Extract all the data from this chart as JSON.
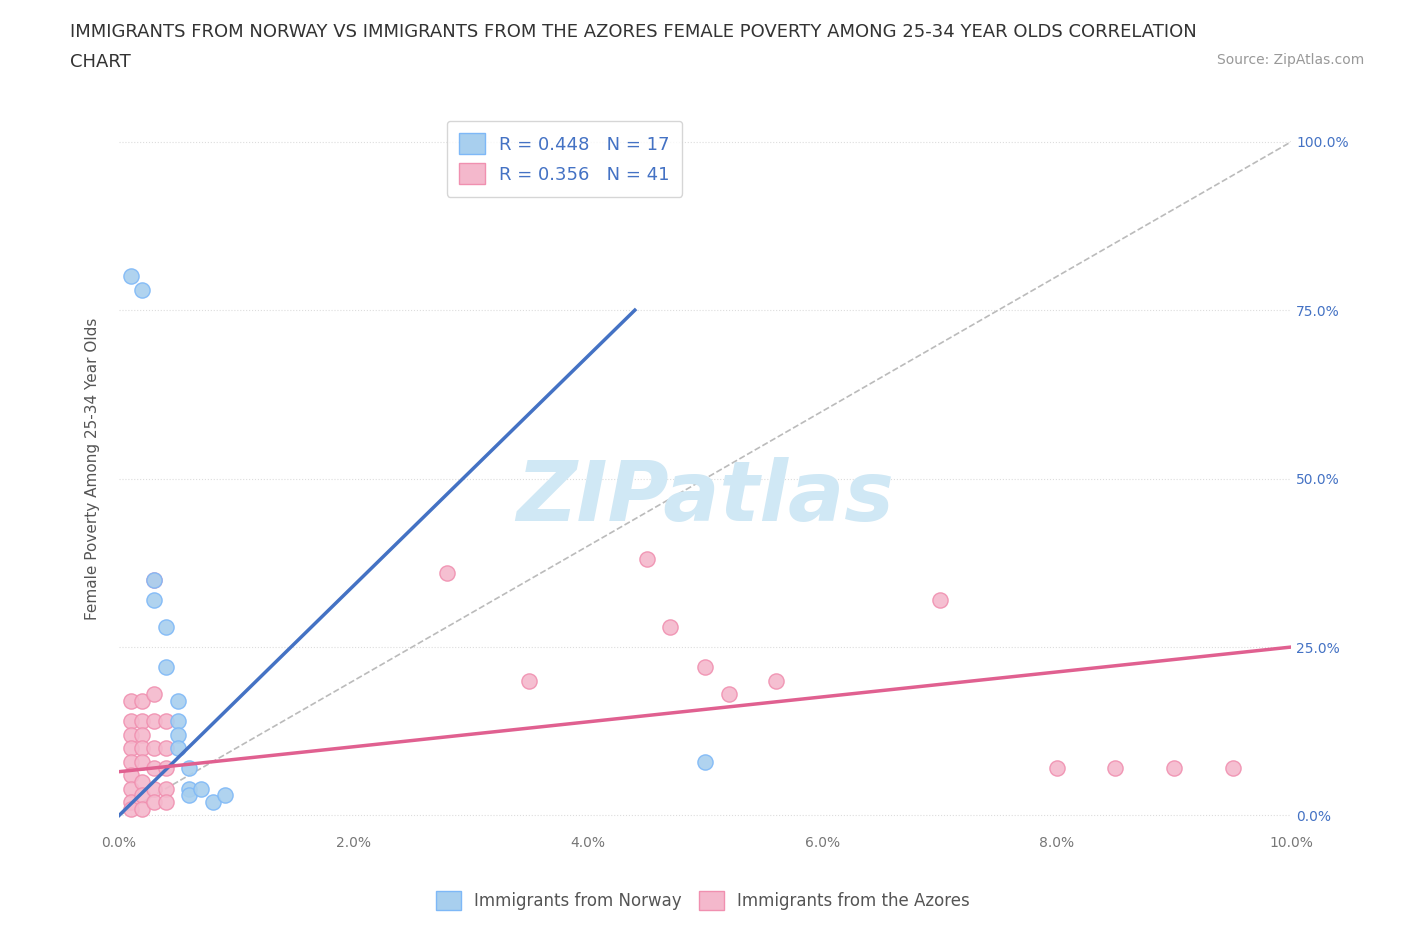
{
  "title_line1": "IMMIGRANTS FROM NORWAY VS IMMIGRANTS FROM THE AZORES FEMALE POVERTY AMONG 25-34 YEAR OLDS CORRELATION",
  "title_line2": "CHART",
  "source_text": "Source: ZipAtlas.com",
  "ylabel": "Female Poverty Among 25-34 Year Olds",
  "xlabel_ticks": [
    "0.0%",
    "2.0%",
    "4.0%",
    "6.0%",
    "8.0%",
    "10.0%"
  ],
  "ylabel_ticks_right": [
    "100.0%",
    "75.0%",
    "50.0%",
    "25.0%",
    "0.0%"
  ],
  "xlim": [
    0.0,
    0.1
  ],
  "ylim": [
    -0.02,
    1.05
  ],
  "norway_R": 0.448,
  "norway_N": 17,
  "azores_R": 0.356,
  "azores_N": 41,
  "norway_color": "#A8CFEE",
  "azores_color": "#F4B8CC",
  "norway_edge_color": "#7EB8F7",
  "azores_edge_color": "#F090B0",
  "norway_line_color": "#4472C4",
  "azores_line_color": "#E06090",
  "diagonal_color": "#BBBBBB",
  "watermark_color": "#D0E8F5",
  "background_color": "#FFFFFF",
  "norway_points": [
    [
      0.001,
      0.8
    ],
    [
      0.002,
      0.78
    ],
    [
      0.003,
      0.32
    ],
    [
      0.003,
      0.35
    ],
    [
      0.004,
      0.28
    ],
    [
      0.004,
      0.22
    ],
    [
      0.005,
      0.17
    ],
    [
      0.005,
      0.14
    ],
    [
      0.005,
      0.12
    ],
    [
      0.005,
      0.1
    ],
    [
      0.006,
      0.07
    ],
    [
      0.006,
      0.04
    ],
    [
      0.006,
      0.03
    ],
    [
      0.007,
      0.04
    ],
    [
      0.008,
      0.02
    ],
    [
      0.009,
      0.03
    ],
    [
      0.05,
      0.08
    ]
  ],
  "azores_points": [
    [
      0.001,
      0.17
    ],
    [
      0.001,
      0.14
    ],
    [
      0.001,
      0.12
    ],
    [
      0.001,
      0.1
    ],
    [
      0.001,
      0.08
    ],
    [
      0.001,
      0.06
    ],
    [
      0.001,
      0.04
    ],
    [
      0.001,
      0.02
    ],
    [
      0.001,
      0.01
    ],
    [
      0.002,
      0.17
    ],
    [
      0.002,
      0.14
    ],
    [
      0.002,
      0.12
    ],
    [
      0.002,
      0.1
    ],
    [
      0.002,
      0.08
    ],
    [
      0.002,
      0.05
    ],
    [
      0.002,
      0.03
    ],
    [
      0.002,
      0.01
    ],
    [
      0.003,
      0.35
    ],
    [
      0.003,
      0.18
    ],
    [
      0.003,
      0.14
    ],
    [
      0.003,
      0.1
    ],
    [
      0.003,
      0.07
    ],
    [
      0.003,
      0.04
    ],
    [
      0.003,
      0.02
    ],
    [
      0.004,
      0.14
    ],
    [
      0.004,
      0.1
    ],
    [
      0.004,
      0.07
    ],
    [
      0.004,
      0.04
    ],
    [
      0.004,
      0.02
    ],
    [
      0.028,
      0.36
    ],
    [
      0.035,
      0.2
    ],
    [
      0.045,
      0.38
    ],
    [
      0.047,
      0.28
    ],
    [
      0.05,
      0.22
    ],
    [
      0.052,
      0.18
    ],
    [
      0.056,
      0.2
    ],
    [
      0.07,
      0.32
    ],
    [
      0.08,
      0.07
    ],
    [
      0.085,
      0.07
    ],
    [
      0.09,
      0.07
    ],
    [
      0.095,
      0.07
    ]
  ],
  "norway_regline": [
    [
      0.0,
      0.0
    ],
    [
      0.044,
      0.75
    ]
  ],
  "azores_regline": [
    [
      0.0,
      0.065
    ],
    [
      0.1,
      0.25
    ]
  ],
  "diagonal_line": [
    [
      0.0,
      0.0
    ],
    [
      0.1,
      1.0
    ]
  ],
  "legend_R_color": "#4472C4",
  "title_fontsize": 13,
  "axis_label_fontsize": 11,
  "tick_fontsize": 10,
  "legend_fontsize": 13,
  "source_fontsize": 10,
  "watermark_text": "ZIPatlas",
  "watermark_fontsize": 60,
  "right_tick_color": "#4472C4"
}
